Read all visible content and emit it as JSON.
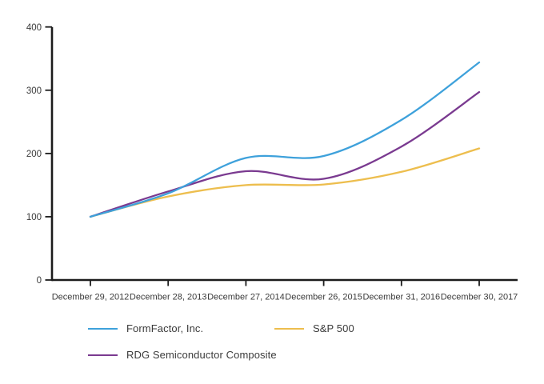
{
  "chart_data": {
    "type": "line",
    "line_style": "smooth",
    "grid": false,
    "legend_position": "bottom",
    "categories": [
      "December 29, 2012",
      "December 28, 2013",
      "December 27, 2014",
      "December 26, 2015",
      "December 31, 2016",
      "December 30, 2017"
    ],
    "series": [
      {
        "name": "FormFactor, Inc.",
        "color": "#3EA1DB",
        "values": [
          100,
          137,
          193,
          196,
          253,
          344
        ]
      },
      {
        "name": "S&P 500",
        "color": "#EDBE4E",
        "values": [
          100,
          132,
          150,
          151,
          171,
          208
        ]
      },
      {
        "name": "RDG Semiconductor Composite",
        "color": "#7A3A90",
        "values": [
          100,
          140,
          172,
          160,
          211,
          297
        ]
      }
    ],
    "y_ticks": [
      0,
      100,
      200,
      300,
      400
    ],
    "ylim": [
      0,
      400
    ],
    "xlabel": "",
    "ylabel": "",
    "title": ""
  },
  "colors": {
    "axis": "#1c1c1c",
    "tick_label": "#3b3b3b",
    "background": "#ffffff"
  }
}
